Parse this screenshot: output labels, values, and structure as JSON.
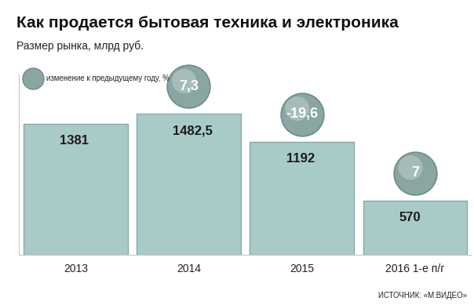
{
  "chart_data": {
    "type": "bar",
    "title": "Как продается бытовая техника и электроника",
    "subtitle": "Размер рынка, млрд руб.",
    "categories": [
      "2013",
      "2014",
      "2015",
      "2016 1-е п/г"
    ],
    "values": [
      1381,
      1482.5,
      1192,
      570
    ],
    "value_labels": [
      "1381",
      "1482,5",
      "1192",
      "570"
    ],
    "changes": [
      null,
      7.3,
      -19.6,
      7
    ],
    "change_labels": [
      null,
      "7,3",
      "-19,6",
      "7"
    ],
    "change_name": "изменение к предыдущему году, %",
    "source": "ИСТОЧНИК: «М.ВИДЕО»",
    "color": "#a9cbc7",
    "ylim": [
      0,
      1900
    ],
    "data_labels": true,
    "tick_labels": "x"
  }
}
